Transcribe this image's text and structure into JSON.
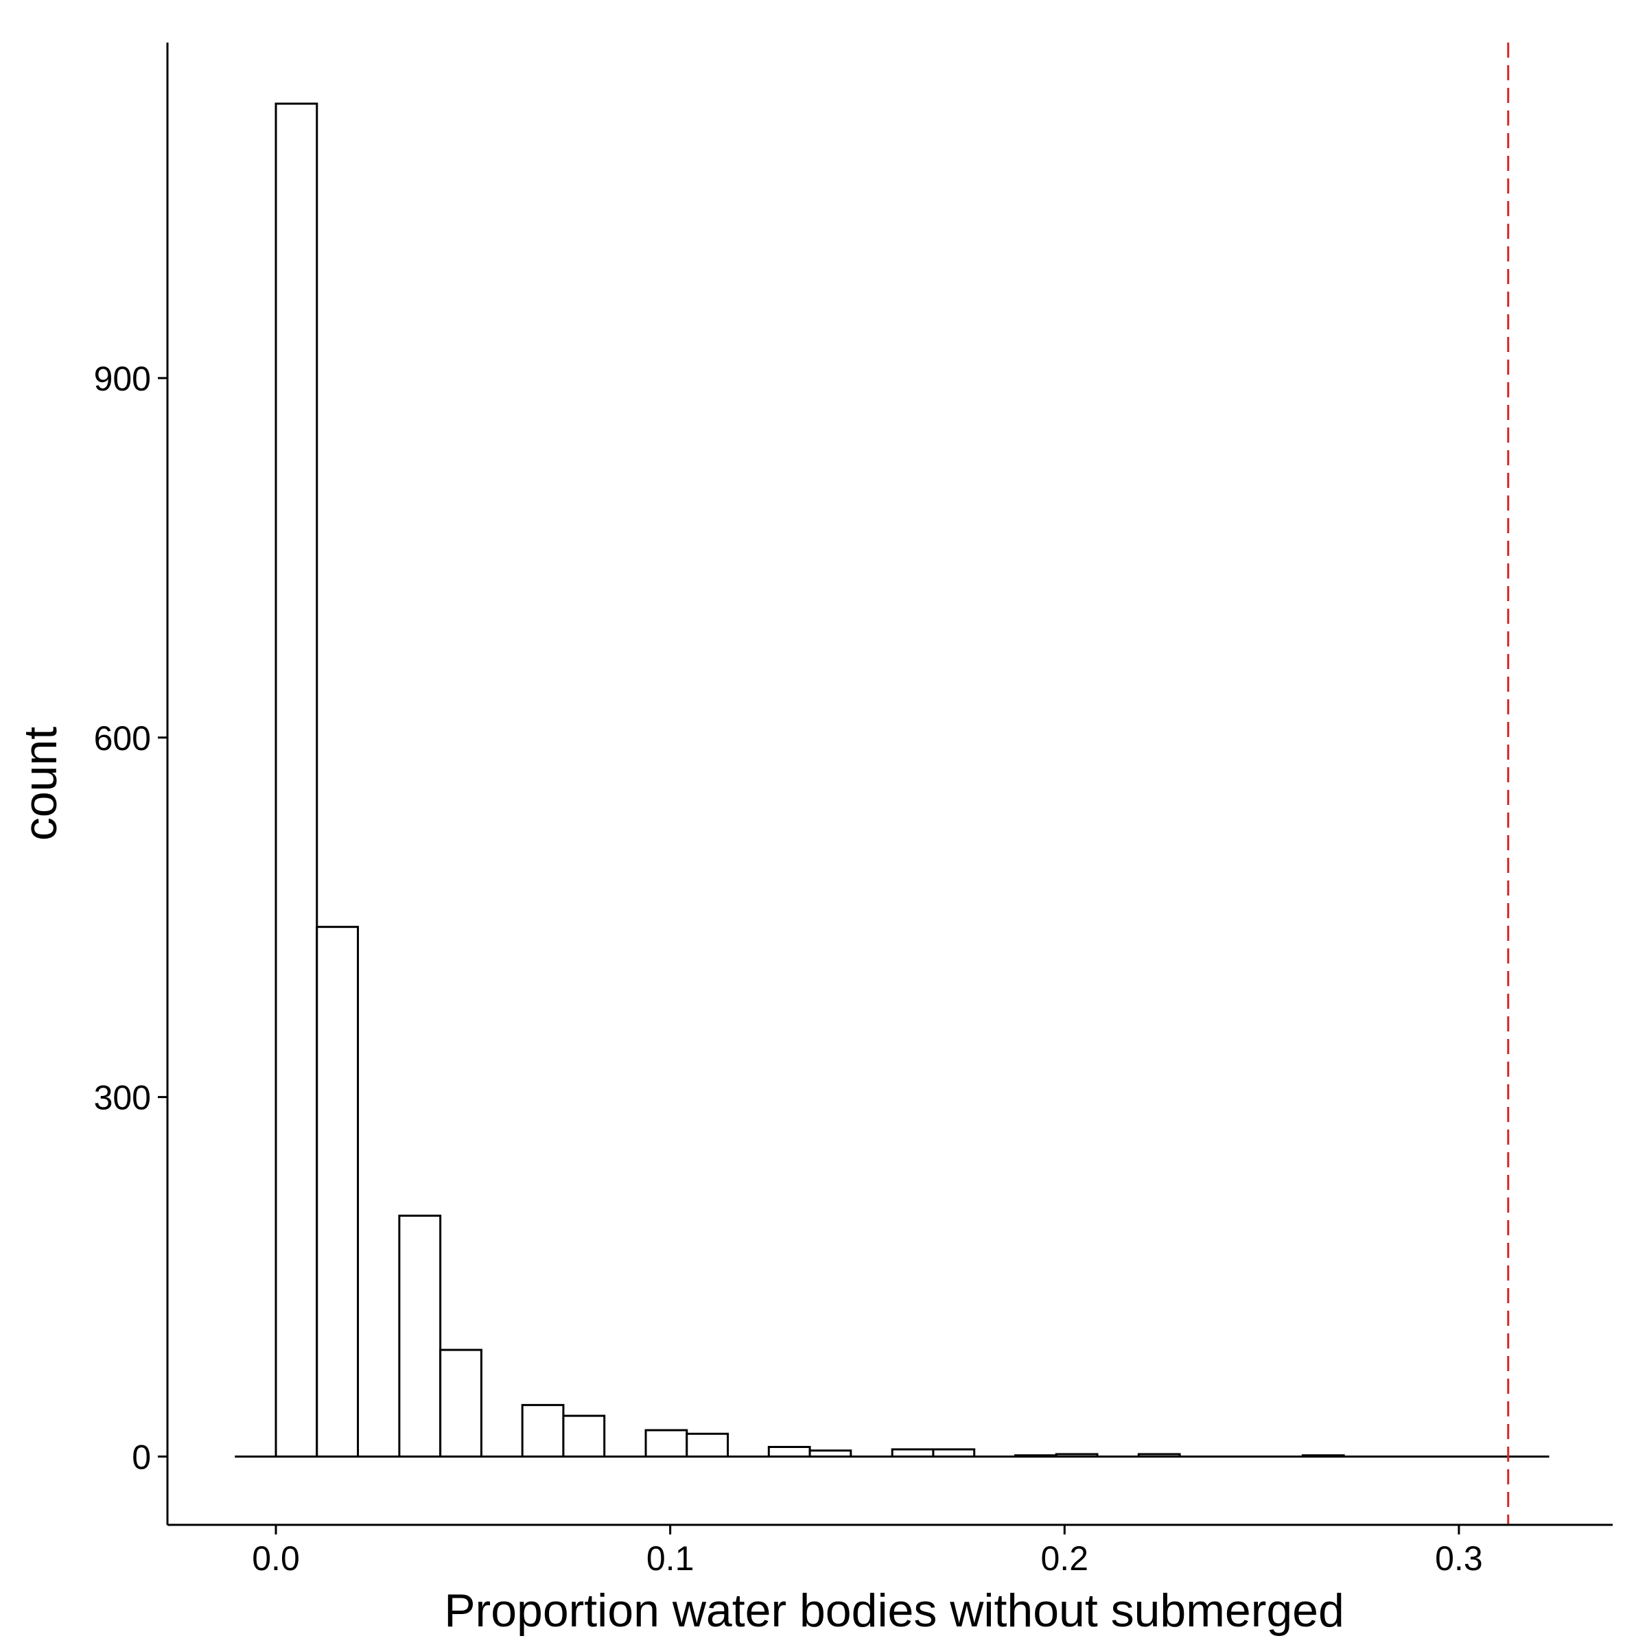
{
  "chart_data": {
    "type": "bar",
    "title": "",
    "xlabel": "Proportion water bodies without submerged",
    "ylabel": "count",
    "xlim": [
      -0.0275,
      0.339
    ],
    "ylim": [
      -57,
      1180
    ],
    "x_ticks": [
      {
        "value": 0.0,
        "label": "0.0"
      },
      {
        "value": 0.1,
        "label": "0.1"
      },
      {
        "value": 0.2,
        "label": "0.2"
      },
      {
        "value": 0.3,
        "label": "0.3"
      }
    ],
    "y_ticks": [
      {
        "value": 0,
        "label": "0"
      },
      {
        "value": 300,
        "label": "300"
      },
      {
        "value": 600,
        "label": "600"
      },
      {
        "value": 900,
        "label": "900"
      }
    ],
    "bin_width": 0.0104,
    "bins": [
      {
        "x0": 0.0,
        "count": 1129
      },
      {
        "x0": 0.0104,
        "count": 442
      },
      {
        "x0": 0.0313,
        "count": 201
      },
      {
        "x0": 0.0417,
        "count": 89
      },
      {
        "x0": 0.0625,
        "count": 43
      },
      {
        "x0": 0.0729,
        "count": 34
      },
      {
        "x0": 0.0938,
        "count": 22
      },
      {
        "x0": 0.1042,
        "count": 19
      },
      {
        "x0": 0.125,
        "count": 8
      },
      {
        "x0": 0.1354,
        "count": 5
      },
      {
        "x0": 0.1563,
        "count": 6
      },
      {
        "x0": 0.1667,
        "count": 6
      },
      {
        "x0": 0.1875,
        "count": 1
      },
      {
        "x0": 0.1979,
        "count": 2
      },
      {
        "x0": 0.2188,
        "count": 2
      },
      {
        "x0": 0.2604,
        "count": 1
      }
    ],
    "baseline_range": [
      -0.0104,
      0.3229
    ],
    "reference_line": {
      "x": 0.3125,
      "style": "dashed",
      "color": "#d62728"
    },
    "grid": false,
    "colors": {
      "bar_fill": "#ffffff",
      "bar_stroke": "#000000"
    }
  }
}
